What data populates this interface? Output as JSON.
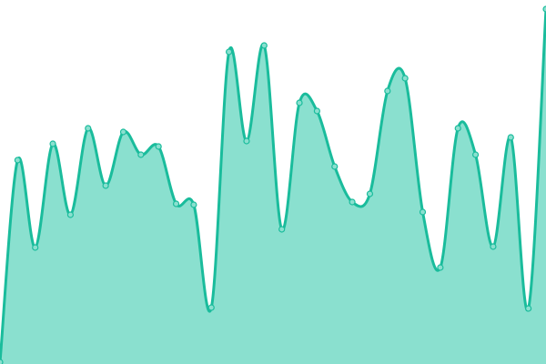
{
  "chart_data": {
    "type": "area",
    "title": "",
    "xlabel": "",
    "ylabel": "",
    "x": [
      0,
      1,
      2,
      3,
      4,
      5,
      6,
      7,
      8,
      9,
      10,
      11,
      12,
      13,
      14,
      15,
      16,
      17,
      18,
      19,
      20,
      21,
      22,
      23,
      24,
      25,
      26,
      27,
      28,
      29,
      30,
      31
    ],
    "values": [
      2,
      224,
      128,
      242,
      164,
      259,
      196,
      255,
      230,
      239,
      176,
      175,
      62,
      343,
      245,
      350,
      148,
      287,
      278,
      217,
      178,
      187,
      300,
      314,
      167,
      106,
      259,
      230,
      129,
      249,
      61,
      390
    ],
    "ylim": [
      0,
      400
    ],
    "grid": false,
    "axes_visible": false,
    "smooth": true,
    "colors": {
      "line": "#1abc9c",
      "fill": "#8ae0cf",
      "marker_fill": "#8ae0cf",
      "marker_stroke": "#1abc9c"
    }
  }
}
